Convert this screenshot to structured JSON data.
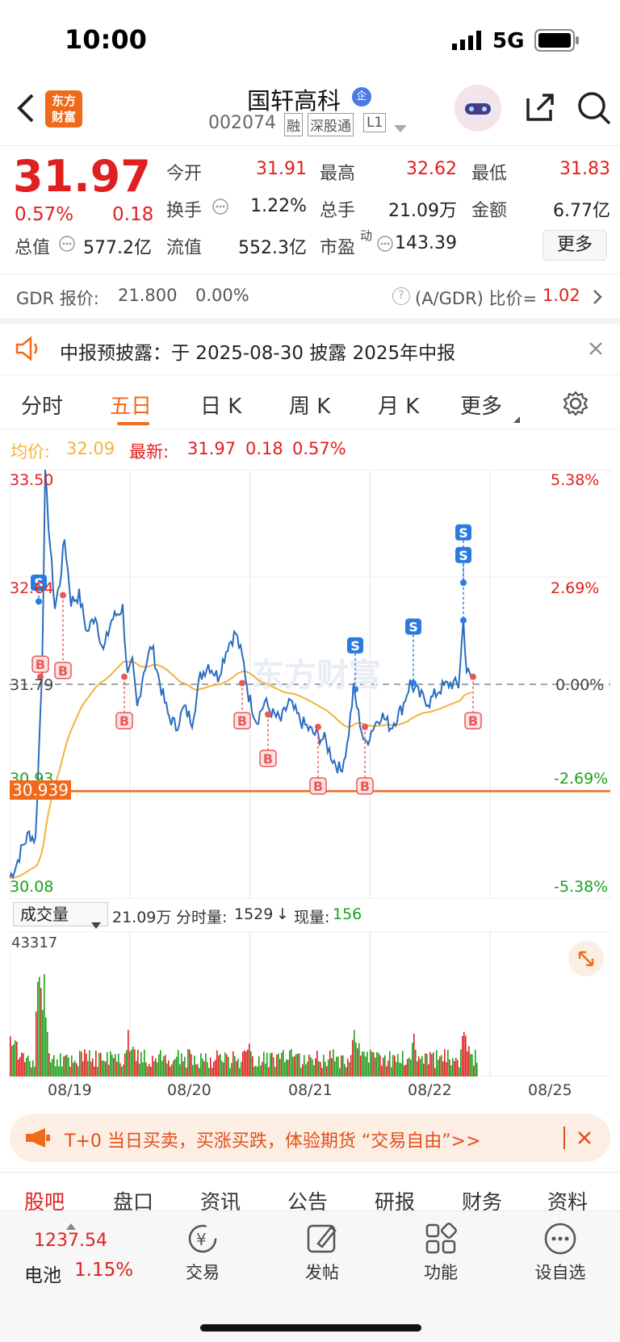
{
  "status_bar": {
    "time": "10:00",
    "network": "5G"
  },
  "header": {
    "logo_line1": "东方",
    "logo_line2": "财富",
    "stock_name": "国轩高科",
    "stock_code": "002074",
    "tags": [
      "融",
      "深股通",
      "L1"
    ]
  },
  "quote": {
    "price": "31.97",
    "change_pct": "0.57%",
    "change": "0.18",
    "open_label": "今开",
    "open": "31.91",
    "high_label": "最高",
    "high": "32.62",
    "low_label": "最低",
    "low": "31.83",
    "turnover_label": "换手",
    "turnover": "1.22%",
    "volume_label": "总手",
    "volume": "21.09万",
    "amount_label": "金额",
    "amount": "6.77亿",
    "mktcap_label": "总值",
    "mktcap": "577.2亿",
    "float_label": "流值",
    "float": "552.3亿",
    "pe_label": "市盈",
    "pe_sup": "动",
    "pe": "143.39",
    "more_button": "更多"
  },
  "gdr": {
    "label": "GDR 报价:",
    "price": "21.800",
    "pct": "0.00%",
    "ratio_label": "(A/GDR) 比价=",
    "ratio": "1.02"
  },
  "notice": {
    "text": "中报预披露：于 2025-08-30 披露 2025年中报"
  },
  "chart_tabs": [
    "分时",
    "五日",
    "日 K",
    "周 K",
    "月 K",
    "更多"
  ],
  "active_tab": "五日",
  "chart_info": {
    "avg_label": "均价:",
    "avg": "32.09",
    "last_label": "最新:",
    "last": "31.97",
    "last_change": "0.18",
    "last_pct": "0.57%"
  },
  "volume_bar": {
    "selector": "成交量",
    "total": "21.09万",
    "minute_label": "分时量:",
    "minute": "1529",
    "now_label": "现量:",
    "now": "156",
    "max_label": "43317"
  },
  "chart_data": {
    "type": "line",
    "x": [
      "08/19",
      "08/20",
      "08/21",
      "08/22",
      "08/25"
    ],
    "y_left_ticks": [
      "33.50",
      "32.64",
      "31.79",
      "30.93",
      "30.08"
    ],
    "y_right_ticks": [
      "5.38%",
      "2.69%",
      "0.00%",
      "-2.69%",
      "-5.38%"
    ],
    "ylim": [
      30.08,
      33.5
    ],
    "prev_close": 31.79,
    "cost_line": "30.939",
    "series": [
      {
        "name": "均价",
        "color": "#f3b33d"
      },
      {
        "color": "#2a6dc0"
      }
    ],
    "markers_sell": [
      "S",
      "S",
      "S",
      "S",
      "S"
    ],
    "markers_buy": [
      "B",
      "B",
      "B",
      "B",
      "B",
      "B",
      "B",
      "B"
    ]
  },
  "promo": {
    "text": "T+0 当日买卖，买涨买跌，体验期货 “交易自由”>>"
  },
  "sub_tabs": [
    "股吧",
    "盘口",
    "资讯",
    "公告",
    "研报",
    "财务",
    "资料"
  ],
  "bottom_nav": {
    "index_value": "1237.54",
    "index_name": "电池",
    "index_pct": "1.15%",
    "items": [
      "交易",
      "发帖",
      "功能",
      "设自选"
    ]
  },
  "colors": {
    "up": "#e02020",
    "down": "#1aa01a",
    "accent": "#f06a1a",
    "price_line": "#2a6dc0",
    "avg_line": "#f3b33d"
  }
}
